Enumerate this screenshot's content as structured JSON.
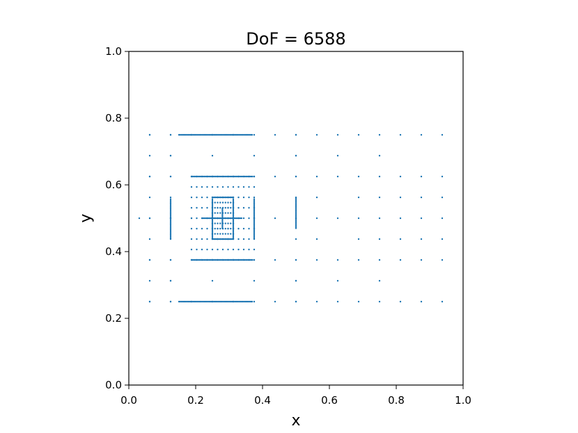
{
  "chart_data": {
    "type": "scatter",
    "title": "DoF = 6588",
    "xlabel": "x",
    "ylabel": "y",
    "xlim": [
      0.0,
      1.0
    ],
    "ylim": [
      0.0,
      1.0
    ],
    "xticks": [
      "0.0",
      "0.2",
      "0.4",
      "0.6",
      "0.8",
      "1.0"
    ],
    "yticks": [
      "0.0",
      "0.2",
      "0.4",
      "0.6",
      "0.8",
      "1.0"
    ],
    "grid": false,
    "marker_color": "#1f77b4",
    "points_description": "Adaptively refined grid nodes clustered around (0.28, 0.50) within the region x 0.0–0.94, y 0.25–0.75",
    "clusters": {
      "coarse_grid_x": [
        0.0625,
        0.125,
        0.1875,
        0.25,
        0.3125,
        0.375,
        0.4375,
        0.5,
        0.5625,
        0.625,
        0.6875,
        0.75,
        0.8125,
        0.875,
        0.9375
      ],
      "coarse_grid_y": [
        0.25,
        0.3125,
        0.375,
        0.4375,
        0.5,
        0.5625,
        0.625,
        0.6875,
        0.75
      ],
      "dense_lines": [
        {
          "orientation": "h",
          "y": 0.75,
          "x_from": 0.15,
          "x_to": 0.37
        },
        {
          "orientation": "h",
          "y": 0.25,
          "x_from": 0.15,
          "x_to": 0.37
        },
        {
          "orientation": "h",
          "y": 0.625,
          "x_from": 0.19,
          "x_to": 0.37
        },
        {
          "orientation": "h",
          "y": 0.375,
          "x_from": 0.19,
          "x_to": 0.37
        },
        {
          "orientation": "h",
          "y": 0.5625,
          "x_from": 0.25,
          "x_to": 0.3125
        },
        {
          "orientation": "h",
          "y": 0.4375,
          "x_from": 0.25,
          "x_to": 0.3125
        },
        {
          "orientation": "h",
          "y": 0.5,
          "x_from": 0.22,
          "x_to": 0.34
        },
        {
          "orientation": "v",
          "x": 0.125,
          "y_from": 0.44,
          "y_to": 0.56
        },
        {
          "orientation": "v",
          "x": 0.375,
          "y_from": 0.44,
          "y_to": 0.56
        },
        {
          "orientation": "v",
          "x": 0.25,
          "y_from": 0.44,
          "y_to": 0.56
        },
        {
          "orientation": "v",
          "x": 0.3125,
          "y_from": 0.44,
          "y_to": 0.56
        },
        {
          "orientation": "v",
          "x": 0.5,
          "y_from": 0.47,
          "y_to": 0.56
        },
        {
          "orientation": "v",
          "x": 0.28,
          "y_from": 0.47,
          "y_to": 0.53
        }
      ]
    }
  }
}
